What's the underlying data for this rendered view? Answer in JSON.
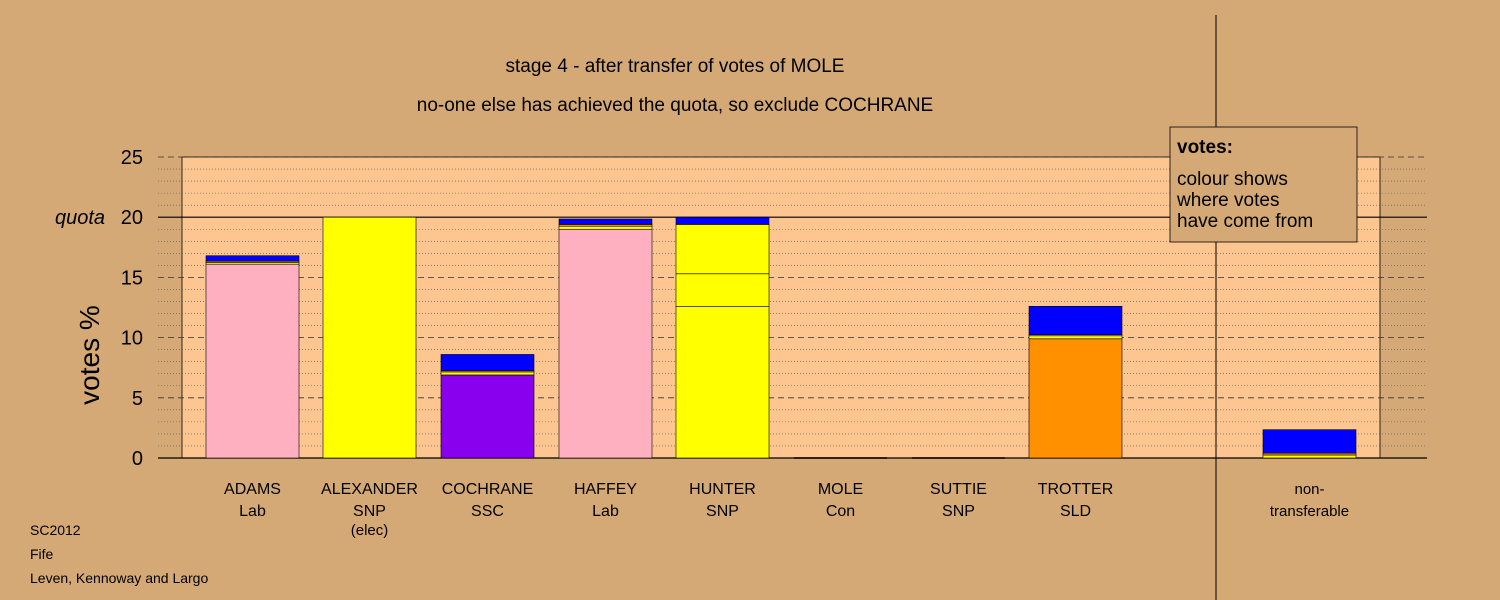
{
  "chart_data": {
    "type": "bar",
    "title": "stage 4 - after transfer of votes of MOLE",
    "subtitle": "no-one else has achieved the quota, so exclude COCHRANE",
    "ylabel": "votes %",
    "ylim": [
      0,
      25
    ],
    "yticks": [
      "0",
      "5",
      "10",
      "15",
      "20",
      "25"
    ],
    "quota_value": 20,
    "quota_label": "quota",
    "legend": {
      "title": "votes:",
      "lines": [
        "colour shows",
        "where votes",
        "have come from"
      ]
    },
    "categories": [
      {
        "name": "ADAMS",
        "party": "Lab",
        "note": "",
        "segments": [
          {
            "value": 16.1,
            "color": "#ffb0c0"
          },
          {
            "value": 0.15,
            "color": "#ffff00"
          },
          {
            "value": 0.1,
            "color": "#ff9000"
          },
          {
            "value": 0.45,
            "color": "#0000ff"
          }
        ]
      },
      {
        "name": "ALEXANDER",
        "party": "SNP",
        "note": "(elec)",
        "segments": [
          {
            "value": 20.0,
            "color": "#ffff00"
          }
        ]
      },
      {
        "name": "COCHRANE",
        "party": "SSC",
        "note": "",
        "segments": [
          {
            "value": 6.9,
            "color": "#8800ee"
          },
          {
            "value": 0.25,
            "color": "#ffff00"
          },
          {
            "value": 0.1,
            "color": "#ff9000"
          },
          {
            "value": 1.35,
            "color": "#0000ff"
          }
        ]
      },
      {
        "name": "HAFFEY",
        "party": "Lab",
        "note": "",
        "segments": [
          {
            "value": 19.0,
            "color": "#ffb0c0"
          },
          {
            "value": 0.25,
            "color": "#ffff00"
          },
          {
            "value": 0.15,
            "color": "#ff9000"
          },
          {
            "value": 0.45,
            "color": "#0000ff"
          }
        ]
      },
      {
        "name": "HUNTER",
        "party": "SNP",
        "note": "",
        "segments": [
          {
            "value": 12.6,
            "color": "#ffff00"
          },
          {
            "value": 2.7,
            "color": "#ffff00"
          },
          {
            "value": 4.1,
            "color": "#ffff00"
          },
          {
            "value": 0.6,
            "color": "#0000ff"
          }
        ]
      },
      {
        "name": "MOLE",
        "party": "Con",
        "note": "",
        "segments": []
      },
      {
        "name": "SUTTIE",
        "party": "SNP",
        "note": "",
        "segments": []
      },
      {
        "name": "TROTTER",
        "party": "SLD",
        "note": "",
        "segments": [
          {
            "value": 9.9,
            "color": "#ff9000"
          },
          {
            "value": 0.25,
            "color": "#ffff00"
          },
          {
            "value": 0.1,
            "color": "#ffb0c0"
          },
          {
            "value": 2.35,
            "color": "#0000ff"
          }
        ]
      }
    ],
    "nontransferable": {
      "label_lines": [
        "non-",
        "transferable"
      ],
      "segments": [
        {
          "value": 0.25,
          "color": "#ffff00"
        },
        {
          "value": 0.15,
          "color": "#ff9000"
        },
        {
          "value": 1.95,
          "color": "#0000ff"
        }
      ]
    },
    "colors": {
      "background": "#d5a975",
      "plot_area": "#fdc58f",
      "legend_box": "#d5a975"
    }
  },
  "footer": {
    "line1": "SC2012",
    "line2": "Fife",
    "line3": "Leven, Kennoway and Largo"
  }
}
